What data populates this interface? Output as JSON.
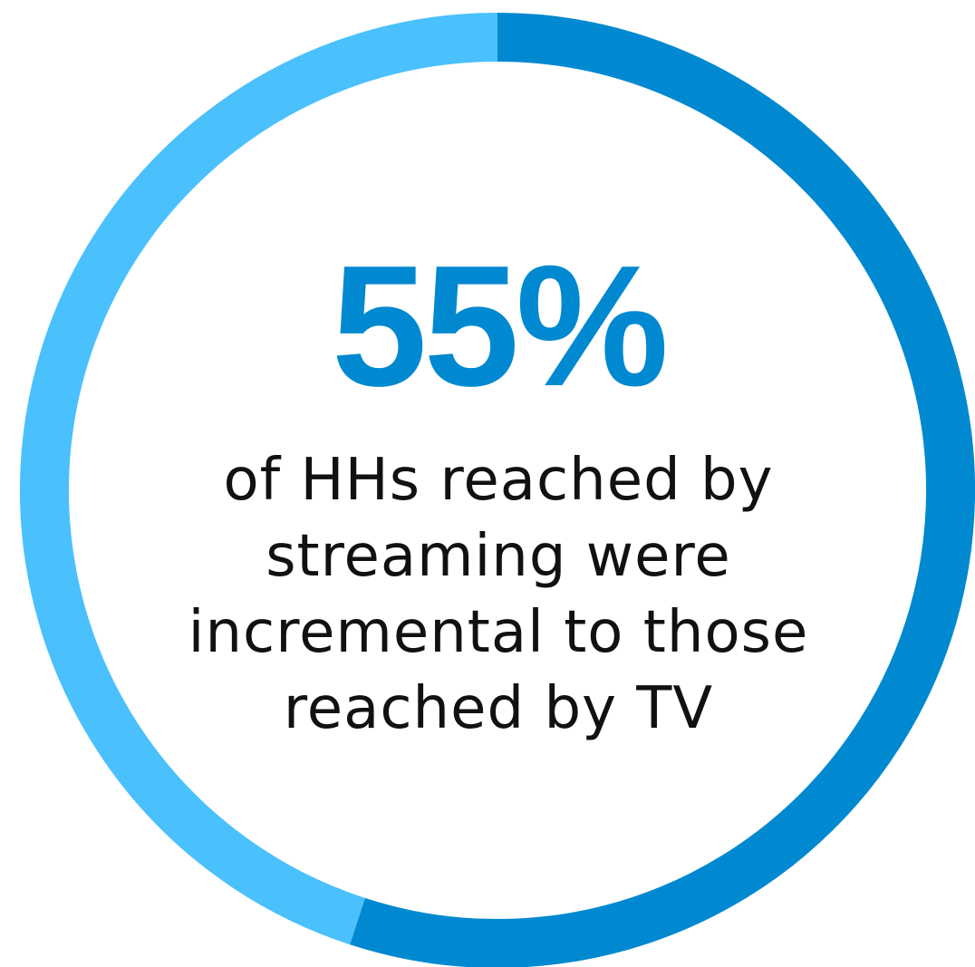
{
  "chart_data": {
    "type": "pie",
    "style": "donut",
    "slices": [
      {
        "value": 55,
        "color": "#0089d0"
      },
      {
        "value": 45,
        "color": "#4ac0fd"
      }
    ],
    "center_value": "55%",
    "caption_lines": [
      "of HHs reached by",
      "streaming were",
      "incremental to those",
      "reached by TV"
    ]
  },
  "colors": {
    "primary": "#0089d0",
    "secondary": "#4ac0fd",
    "text": "#111111"
  }
}
